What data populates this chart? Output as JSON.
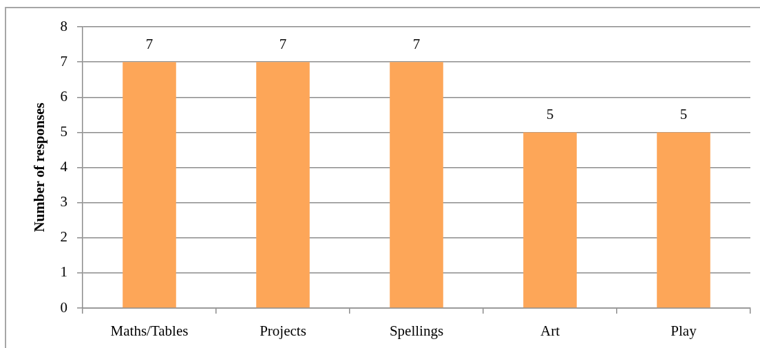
{
  "chart_data": {
    "type": "bar",
    "ylabel": "Number of responses",
    "categories": [
      "Maths/Tables",
      "Projects",
      "Spellings",
      "Art",
      "Play"
    ],
    "values": [
      7,
      7,
      7,
      5,
      5
    ],
    "color": "#fda658",
    "ylim": [
      0,
      8
    ],
    "yticks": [
      0,
      1,
      2,
      3,
      4,
      5,
      6,
      7,
      8
    ],
    "grid": "y",
    "data_labels": true
  }
}
